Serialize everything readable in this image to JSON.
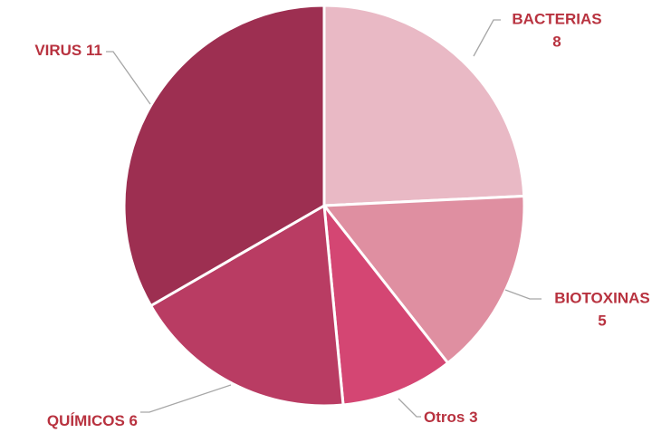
{
  "chart_data": {
    "type": "pie",
    "categories": [
      "BACTERIAS",
      "BIOTOXINAS",
      "Otros",
      "QUÍMICOS",
      "VIRUS"
    ],
    "values": [
      8,
      5,
      3,
      6,
      11
    ],
    "colors": [
      "#e9b9c5",
      "#df8fa1",
      "#d44673",
      "#b93c63",
      "#9d2f51"
    ]
  }
}
